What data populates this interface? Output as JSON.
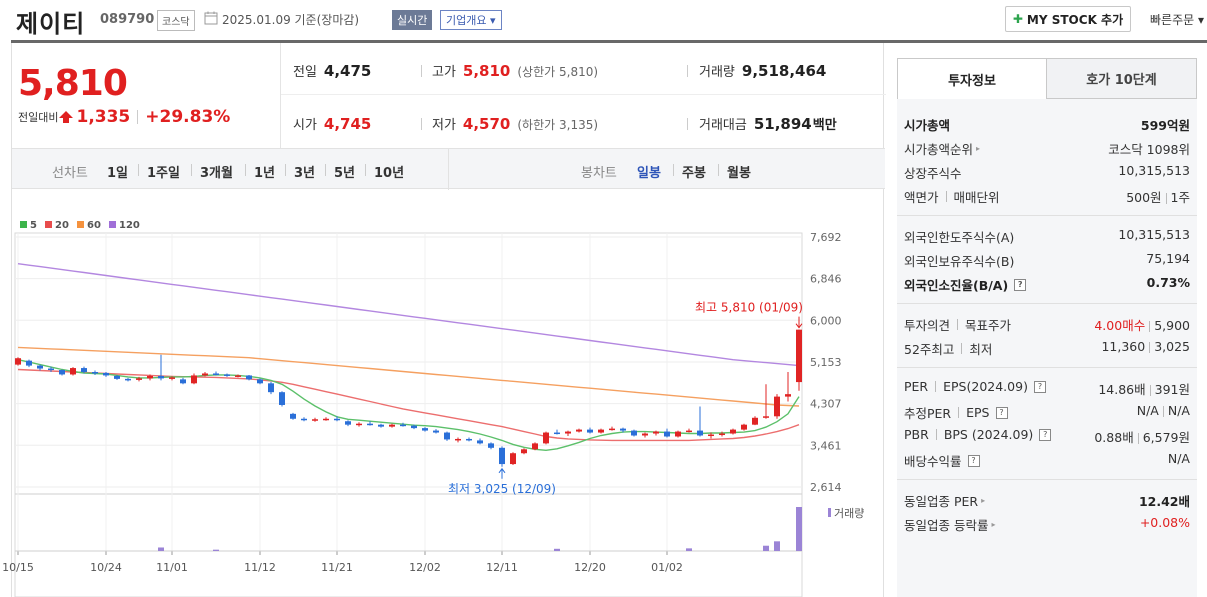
{
  "header": {
    "name": "제이티",
    "code": "089790",
    "market": "코스닥",
    "date_text": "2025.01.09  기준(장마감)",
    "realtime_label": "실시간",
    "corp_label": "기업개요 ▾",
    "mystock_label": "MY STOCK 추가",
    "quick_label": "빠른주문 ▾"
  },
  "price": {
    "current": "5,810",
    "change_label": "전일대비",
    "change_value": "1,335",
    "change_pct": "+29.83%"
  },
  "stats": {
    "prev_label": "전일",
    "prev_value": "4,475",
    "high_label": "고가",
    "high_value": "5,810",
    "upper_limit": "(상한가 5,810)",
    "volume_label": "거래량",
    "volume_value": "9,518,464",
    "open_label": "시가",
    "open_value": "4,745",
    "low_label": "저가",
    "low_value": "4,570",
    "lower_limit": "(하한가 3,135)",
    "amount_label": "거래대금",
    "amount_value": "51,894",
    "amount_unit": "백만"
  },
  "period_bar": {
    "line_label": "선차트",
    "line_items": [
      "1일",
      "1주일",
      "3개월",
      "1년",
      "3년",
      "5년",
      "10년"
    ],
    "candle_label": "봉차트",
    "candle_items": [
      "일봉",
      "주봉",
      "월봉"
    ],
    "candle_selected": "일봉"
  },
  "chart_data": {
    "type": "candlestick",
    "legend": [
      {
        "name": "5",
        "color": "#3cb44b"
      },
      {
        "name": "20",
        "color": "#e84c4c"
      },
      {
        "name": "60",
        "color": "#f5923e"
      },
      {
        "name": "120",
        "color": "#a06fd8"
      }
    ],
    "y_ticks": [
      "7,692",
      "6,846",
      "6,000",
      "5,153",
      "4,307",
      "3,461",
      "2,614"
    ],
    "ylim": [
      2614,
      7692
    ],
    "x_ticks": [
      "10/15",
      "10/24",
      "11/01",
      "11/12",
      "11/21",
      "12/02",
      "12/11",
      "12/20",
      "01/02"
    ],
    "high_annotation": "최고 5,810 (01/09)",
    "low_annotation": "최저 3,025 (12/09)",
    "volume_label": "거래량",
    "candles": [
      [
        5100,
        5250,
        5080,
        5230
      ],
      [
        5180,
        5200,
        5050,
        5080
      ],
      [
        5080,
        5100,
        4980,
        5020
      ],
      [
        5020,
        5060,
        4950,
        4990
      ],
      [
        4990,
        5000,
        4880,
        4900
      ],
      [
        4900,
        5050,
        4880,
        5030
      ],
      [
        5030,
        5060,
        4920,
        4950
      ],
      [
        4950,
        4980,
        4890,
        4930
      ],
      [
        4930,
        4950,
        4850,
        4880
      ],
      [
        4870,
        4890,
        4790,
        4810
      ],
      [
        4810,
        4830,
        4760,
        4790
      ],
      [
        4790,
        4850,
        4760,
        4820
      ],
      [
        4820,
        4900,
        4780,
        4870
      ],
      [
        4870,
        5300,
        4780,
        4820
      ],
      [
        4820,
        4860,
        4780,
        4840
      ],
      [
        4800,
        4830,
        4700,
        4720
      ],
      [
        4720,
        4920,
        4700,
        4880
      ],
      [
        4880,
        4950,
        4860,
        4920
      ],
      [
        4920,
        4960,
        4880,
        4900
      ],
      [
        4900,
        4920,
        4850,
        4870
      ],
      [
        4870,
        4900,
        4840,
        4880
      ],
      [
        4880,
        4890,
        4780,
        4800
      ],
      [
        4800,
        4820,
        4700,
        4720
      ],
      [
        4720,
        4750,
        4500,
        4540
      ],
      [
        4540,
        4560,
        4250,
        4280
      ],
      [
        4100,
        4120,
        3980,
        4000
      ],
      [
        4000,
        4030,
        3950,
        3980
      ],
      [
        3980,
        4020,
        3940,
        3990
      ],
      [
        3990,
        4030,
        3960,
        4000
      ],
      [
        4000,
        4050,
        3950,
        3970
      ],
      [
        3950,
        3970,
        3850,
        3880
      ],
      [
        3880,
        3930,
        3840,
        3900
      ],
      [
        3900,
        3950,
        3860,
        3880
      ],
      [
        3880,
        3900,
        3820,
        3840
      ],
      [
        3840,
        3900,
        3820,
        3880
      ],
      [
        3880,
        3920,
        3840,
        3860
      ],
      [
        3860,
        3880,
        3790,
        3810
      ],
      [
        3810,
        3830,
        3740,
        3760
      ],
      [
        3760,
        3790,
        3700,
        3720
      ],
      [
        3720,
        3740,
        3550,
        3580
      ],
      [
        3580,
        3620,
        3520,
        3590
      ],
      [
        3590,
        3620,
        3540,
        3560
      ],
      [
        3560,
        3600,
        3480,
        3500
      ],
      [
        3500,
        3520,
        3380,
        3410
      ],
      [
        3410,
        3440,
        3025,
        3080
      ],
      [
        3080,
        3320,
        3060,
        3300
      ],
      [
        3300,
        3400,
        3280,
        3380
      ],
      [
        3380,
        3520,
        3360,
        3500
      ],
      [
        3500,
        3740,
        3480,
        3720
      ],
      [
        3720,
        3780,
        3680,
        3700
      ],
      [
        3700,
        3760,
        3650,
        3740
      ],
      [
        3740,
        3800,
        3720,
        3780
      ],
      [
        3780,
        3820,
        3700,
        3720
      ],
      [
        3720,
        3800,
        3700,
        3780
      ],
      [
        3780,
        3840,
        3760,
        3800
      ],
      [
        3800,
        3820,
        3720,
        3760
      ],
      [
        3760,
        3780,
        3640,
        3660
      ],
      [
        3660,
        3720,
        3620,
        3700
      ],
      [
        3700,
        3760,
        3660,
        3740
      ],
      [
        3740,
        3800,
        3620,
        3640
      ],
      [
        3640,
        3760,
        3620,
        3740
      ],
      [
        3740,
        3800,
        3720,
        3760
      ],
      [
        3760,
        4250,
        3640,
        3660
      ],
      [
        3660,
        3720,
        3600,
        3680
      ],
      [
        3680,
        3740,
        3640,
        3700
      ],
      [
        3700,
        3800,
        3680,
        3780
      ],
      [
        3780,
        3900,
        3760,
        3880
      ],
      [
        3880,
        4050,
        3870,
        4020
      ],
      [
        4020,
        4700,
        4000,
        4050
      ],
      [
        4050,
        4500,
        4000,
        4450
      ],
      [
        4450,
        4950,
        4350,
        4500
      ],
      [
        4745,
        5810,
        4570,
        5810
      ]
    ],
    "ma5": [
      5200,
      5150,
      5100,
      5050,
      5000,
      4960,
      4930,
      4920,
      4910,
      4880,
      4850,
      4830,
      4830,
      4840,
      4850,
      4850,
      4860,
      4880,
      4890,
      4890,
      4880,
      4860,
      4830,
      4780,
      4700,
      4560,
      4400,
      4260,
      4140,
      4040,
      3990,
      3970,
      3950,
      3930,
      3910,
      3890,
      3870,
      3860,
      3840,
      3810,
      3780,
      3740,
      3690,
      3630,
      3560,
      3480,
      3420,
      3380,
      3360,
      3390,
      3450,
      3520,
      3600,
      3660,
      3700,
      3730,
      3740,
      3740,
      3730,
      3720,
      3710,
      3700,
      3700,
      3710,
      3710,
      3720,
      3730,
      3760,
      3830,
      3940,
      4100,
      4450
    ],
    "ma20": [
      5000,
      4990,
      4980,
      4970,
      4960,
      4950,
      4940,
      4930,
      4920,
      4910,
      4900,
      4890,
      4880,
      4870,
      4860,
      4855,
      4850,
      4845,
      4840,
      4830,
      4820,
      4810,
      4790,
      4770,
      4740,
      4700,
      4650,
      4600,
      4550,
      4500,
      4450,
      4400,
      4350,
      4300,
      4250,
      4200,
      4160,
      4120,
      4080,
      4040,
      4000,
      3960,
      3920,
      3880,
      3840,
      3790,
      3740,
      3690,
      3640,
      3610,
      3590,
      3580,
      3570,
      3565,
      3560,
      3560,
      3560,
      3560,
      3560,
      3560,
      3560,
      3560,
      3570,
      3580,
      3590,
      3600,
      3620,
      3650,
      3690,
      3740,
      3800,
      3880
    ],
    "ma60": [
      5450,
      5440,
      5430,
      5420,
      5410,
      5400,
      5390,
      5380,
      5370,
      5360,
      5350,
      5340,
      5330,
      5320,
      5310,
      5300,
      5290,
      5280,
      5270,
      5260,
      5250,
      5240,
      5220,
      5200,
      5180,
      5160,
      5140,
      5120,
      5100,
      5080,
      5060,
      5040,
      5020,
      5000,
      4980,
      4960,
      4940,
      4920,
      4900,
      4880,
      4860,
      4840,
      4820,
      4800,
      4780,
      4760,
      4740,
      4720,
      4700,
      4680,
      4660,
      4640,
      4620,
      4600,
      4580,
      4560,
      4540,
      4520,
      4500,
      4480,
      4460,
      4440,
      4420,
      4400,
      4380,
      4360,
      4340,
      4320,
      4300,
      4280,
      4270,
      4260
    ],
    "ma120": [
      7150,
      7120,
      7090,
      7060,
      7030,
      7000,
      6970,
      6940,
      6910,
      6880,
      6850,
      6820,
      6790,
      6760,
      6730,
      6700,
      6670,
      6640,
      6610,
      6580,
      6550,
      6520,
      6490,
      6460,
      6430,
      6400,
      6370,
      6340,
      6310,
      6280,
      6250,
      6220,
      6190,
      6160,
      6130,
      6100,
      6070,
      6040,
      6010,
      5980,
      5950,
      5920,
      5890,
      5860,
      5830,
      5800,
      5770,
      5740,
      5710,
      5680,
      5650,
      5620,
      5590,
      5560,
      5530,
      5500,
      5470,
      5440,
      5410,
      5380,
      5350,
      5320,
      5290,
      5260,
      5230,
      5200,
      5180,
      5160,
      5140,
      5120,
      5100,
      5080
    ],
    "volume": [
      0,
      0,
      0,
      0,
      0,
      0,
      0,
      0,
      0,
      0,
      0,
      0,
      0,
      0.08,
      0,
      0,
      0,
      0,
      0.03,
      0,
      0,
      0,
      0,
      0,
      0,
      0,
      0,
      0,
      0,
      0,
      0,
      0,
      0,
      0,
      0,
      0,
      0,
      0,
      0,
      0,
      0,
      0,
      0,
      0,
      0,
      0,
      0,
      0,
      0,
      0.05,
      0,
      0,
      0,
      0,
      0,
      0,
      0,
      0,
      0,
      0,
      0,
      0.06,
      0,
      0,
      0,
      0,
      0,
      0,
      0.12,
      0.22,
      0,
      1.0
    ]
  },
  "right": {
    "tab_a": "투자정보",
    "tab_b": "호가 10단계",
    "g1": [
      {
        "k": "시가총액",
        "v": "599억원",
        "bold": true
      },
      {
        "k": "시가총액순위",
        "v": "코스닥 1098위",
        "caret": true
      },
      {
        "k": "상장주식수",
        "v": "10,315,513"
      },
      {
        "k1": "액면가",
        "k2": "매매단위",
        "v1": "500원",
        "v2": "1주"
      }
    ],
    "g2": [
      {
        "k": "외국인한도주식수(A)",
        "v": "10,315,513"
      },
      {
        "k": "외국인보유주식수(B)",
        "v": "75,194"
      },
      {
        "k": "외국인소진율(B/A)",
        "v": "0.73%",
        "bold": true
      }
    ],
    "g3": [
      {
        "k1": "투자의견",
        "k2": "목표주가",
        "v1": "4.00매수",
        "v2": "5,900"
      },
      {
        "k1": "52주최고",
        "k2": "최저",
        "v1": "11,360",
        "v2": "3,025"
      }
    ],
    "g4": [
      {
        "k1": "PER",
        "k2": "EPS(2024.09)",
        "v1": "14.86배",
        "v2": "391원"
      },
      {
        "k1": "추정PER",
        "k2": "EPS",
        "v1": "N/A",
        "v2": "N/A"
      },
      {
        "k1": "PBR",
        "k2": "BPS (2024.09)",
        "v1": "0.88배",
        "v2": "6,579원"
      },
      {
        "k": "배당수익률",
        "v": "N/A"
      }
    ],
    "g5": [
      {
        "k": "동일업종 PER",
        "v": "12.42배"
      },
      {
        "k": "동일업종 등락률",
        "v": "+0.08%"
      }
    ]
  }
}
